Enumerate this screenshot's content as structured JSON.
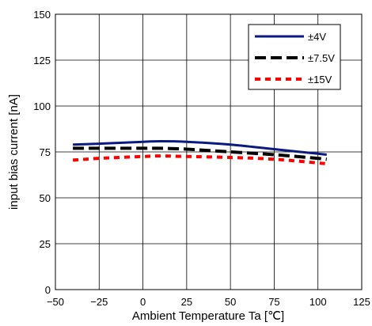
{
  "chart_data": {
    "type": "line",
    "title": "",
    "xlabel": "Ambient Temperature Ta [℃]",
    "ylabel": "input bias current [nA]",
    "xlim": [
      -50,
      125
    ],
    "ylim": [
      0,
      150
    ],
    "xticks": [
      -50,
      -25,
      0,
      25,
      50,
      75,
      100,
      125
    ],
    "yticks": [
      0,
      25,
      50,
      75,
      100,
      125,
      150
    ],
    "xtick_labels": [
      "−50",
      "−25",
      "0",
      "25",
      "50",
      "75",
      "100",
      "125"
    ],
    "ytick_labels": [
      "0",
      "25",
      "50",
      "75",
      "100",
      "125",
      "150"
    ],
    "grid": true,
    "legend_position": "top-right",
    "series": [
      {
        "name": "±4V",
        "color": "#0a1a80",
        "style": "solid",
        "x": [
          -40,
          -25,
          0,
          10,
          25,
          50,
          75,
          100,
          105
        ],
        "y": [
          79,
          79.5,
          80.5,
          80.8,
          80.5,
          79,
          76.5,
          74,
          73.5
        ]
      },
      {
        "name": "±7.5V",
        "color": "#000000",
        "style": "dash",
        "x": [
          -40,
          -25,
          0,
          10,
          25,
          50,
          75,
          100,
          105
        ],
        "y": [
          77,
          77,
          77,
          77,
          76.5,
          75,
          73.5,
          71.5,
          71
        ]
      },
      {
        "name": "±15V",
        "color": "#ff0000",
        "style": "dot",
        "x": [
          -40,
          -25,
          0,
          10,
          25,
          50,
          75,
          100,
          105
        ],
        "y": [
          70.5,
          71.5,
          72.5,
          72.8,
          72.5,
          72,
          71,
          69,
          68.5
        ]
      }
    ]
  }
}
